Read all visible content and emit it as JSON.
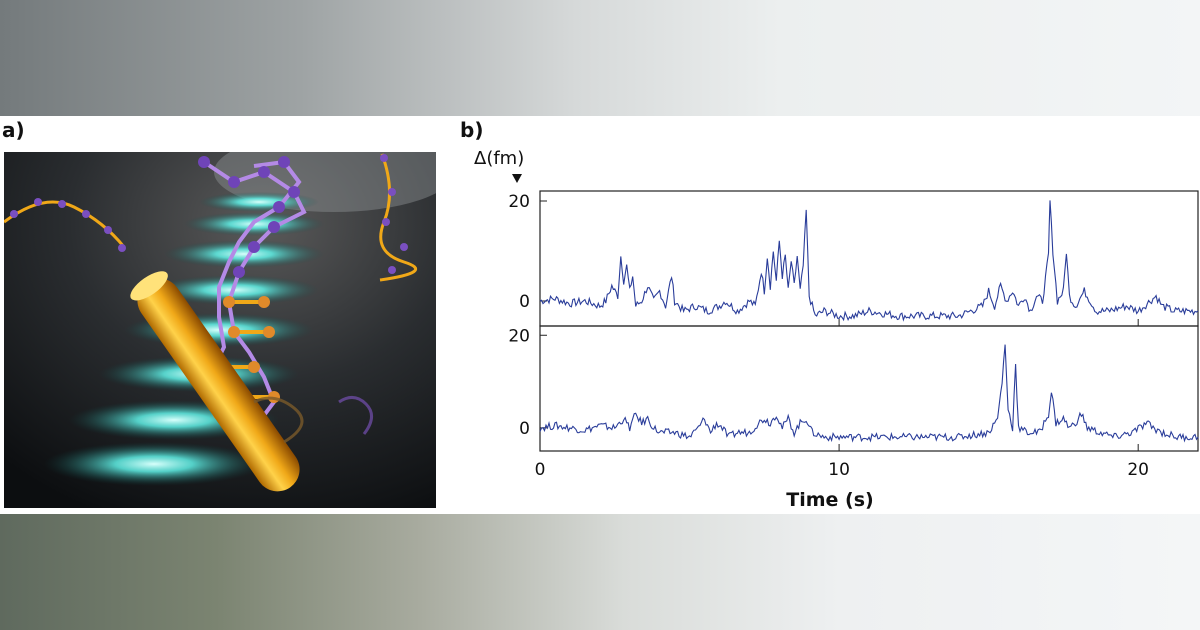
{
  "panels": {
    "a_label": "a)",
    "b_label": "b)"
  },
  "colors": {
    "trace": "#2a3d9a",
    "frame": "#222222",
    "gold_rod": "#f0a818",
    "glow": "#5ff0e6",
    "backbone": "#8a5cc8"
  },
  "chart_data": {
    "type": "line",
    "ylabel": "Δ(fm)",
    "xlabel": "Time (s)",
    "xlim": [
      0,
      22
    ],
    "x_ticks": [
      0,
      10,
      20
    ],
    "y_ticks": [
      0,
      20
    ],
    "grid": false,
    "legend": "none",
    "series": [
      {
        "ylim": [
          -5,
          22
        ],
        "points": [
          [
            0,
            0
          ],
          [
            0.5,
            0.5
          ],
          [
            1,
            -0.5
          ],
          [
            1.5,
            0
          ],
          [
            2,
            -1
          ],
          [
            2.2,
            0
          ],
          [
            2.4,
            3
          ],
          [
            2.6,
            1
          ],
          [
            2.7,
            9
          ],
          [
            2.8,
            4
          ],
          [
            2.9,
            7
          ],
          [
            3.0,
            2
          ],
          [
            3.1,
            5
          ],
          [
            3.2,
            -1
          ],
          [
            3.4,
            0
          ],
          [
            3.6,
            3
          ],
          [
            3.8,
            0
          ],
          [
            4.0,
            2
          ],
          [
            4.2,
            -1
          ],
          [
            4.4,
            5
          ],
          [
            4.5,
            0
          ],
          [
            4.8,
            -2
          ],
          [
            5.2,
            -1
          ],
          [
            5.6,
            -2
          ],
          [
            6.0,
            -1
          ],
          [
            6.2,
            0
          ],
          [
            6.6,
            -2
          ],
          [
            7.0,
            0
          ],
          [
            7.2,
            -1
          ],
          [
            7.4,
            6
          ],
          [
            7.5,
            2
          ],
          [
            7.6,
            9
          ],
          [
            7.7,
            3
          ],
          [
            7.8,
            10
          ],
          [
            7.9,
            4
          ],
          [
            8.0,
            12
          ],
          [
            8.1,
            5
          ],
          [
            8.2,
            9
          ],
          [
            8.3,
            2
          ],
          [
            8.4,
            8
          ],
          [
            8.5,
            3
          ],
          [
            8.6,
            9
          ],
          [
            8.7,
            2
          ],
          [
            8.8,
            7
          ],
          [
            8.9,
            18
          ],
          [
            9.0,
            1
          ],
          [
            9.2,
            -3
          ],
          [
            9.5,
            -2
          ],
          [
            10,
            -3
          ],
          [
            10.5,
            -3
          ],
          [
            11,
            -2
          ],
          [
            12,
            -3
          ],
          [
            13,
            -3
          ],
          [
            14,
            -3
          ],
          [
            14.8,
            -1
          ],
          [
            15.0,
            2
          ],
          [
            15.2,
            -1
          ],
          [
            15.4,
            3
          ],
          [
            15.6,
            0
          ],
          [
            15.8,
            2
          ],
          [
            16.0,
            -1
          ],
          [
            16.2,
            1
          ],
          [
            16.4,
            -2
          ],
          [
            16.6,
            1
          ],
          [
            16.8,
            0
          ],
          [
            17.0,
            9
          ],
          [
            17.05,
            20
          ],
          [
            17.15,
            10
          ],
          [
            17.3,
            0
          ],
          [
            17.5,
            2
          ],
          [
            17.6,
            10
          ],
          [
            17.7,
            1
          ],
          [
            17.9,
            -1
          ],
          [
            18.2,
            2
          ],
          [
            18.6,
            -2
          ],
          [
            19.0,
            -2
          ],
          [
            19.6,
            -1
          ],
          [
            20.0,
            -2
          ],
          [
            20.4,
            0
          ],
          [
            20.6,
            1
          ],
          [
            20.8,
            -1
          ],
          [
            21.2,
            -2
          ],
          [
            22,
            -2
          ]
        ]
      },
      {
        "ylim": [
          -5,
          22
        ],
        "points": [
          [
            0,
            0
          ],
          [
            0.5,
            0.5
          ],
          [
            1,
            0
          ],
          [
            1.5,
            -0.5
          ],
          [
            2,
            0.5
          ],
          [
            2.5,
            0
          ],
          [
            2.8,
            2
          ],
          [
            3.0,
            0
          ],
          [
            3.2,
            3
          ],
          [
            3.4,
            1
          ],
          [
            3.6,
            2
          ],
          [
            3.8,
            0
          ],
          [
            4.0,
            -1
          ],
          [
            4.5,
            -1
          ],
          [
            5.0,
            -2
          ],
          [
            5.3,
            0
          ],
          [
            5.5,
            2
          ],
          [
            5.7,
            -1
          ],
          [
            5.9,
            1
          ],
          [
            6.1,
            0
          ],
          [
            6.3,
            -2
          ],
          [
            6.6,
            -1
          ],
          [
            7.0,
            -1
          ],
          [
            7.3,
            1
          ],
          [
            7.5,
            2
          ],
          [
            7.7,
            1
          ],
          [
            7.9,
            3
          ],
          [
            8.1,
            0
          ],
          [
            8.3,
            2
          ],
          [
            8.5,
            -1
          ],
          [
            8.7,
            1
          ],
          [
            8.9,
            2
          ],
          [
            9.1,
            -1
          ],
          [
            9.5,
            -2
          ],
          [
            10,
            -2
          ],
          [
            11,
            -2
          ],
          [
            12,
            -2
          ],
          [
            13,
            -2
          ],
          [
            14,
            -2
          ],
          [
            15,
            -1
          ],
          [
            15.3,
            2
          ],
          [
            15.45,
            10
          ],
          [
            15.55,
            18
          ],
          [
            15.65,
            4
          ],
          [
            15.8,
            0
          ],
          [
            15.9,
            14
          ],
          [
            16.0,
            0
          ],
          [
            16.3,
            -1
          ],
          [
            16.7,
            -1
          ],
          [
            17.0,
            3
          ],
          [
            17.1,
            8
          ],
          [
            17.25,
            1
          ],
          [
            17.5,
            2
          ],
          [
            17.7,
            0
          ],
          [
            17.9,
            1
          ],
          [
            18.1,
            3
          ],
          [
            18.3,
            0
          ],
          [
            18.7,
            -1
          ],
          [
            19.2,
            -2
          ],
          [
            19.8,
            -1
          ],
          [
            20.3,
            1
          ],
          [
            20.5,
            0
          ],
          [
            20.8,
            -1
          ],
          [
            21.3,
            -2
          ],
          [
            22,
            -2
          ]
        ]
      }
    ]
  }
}
